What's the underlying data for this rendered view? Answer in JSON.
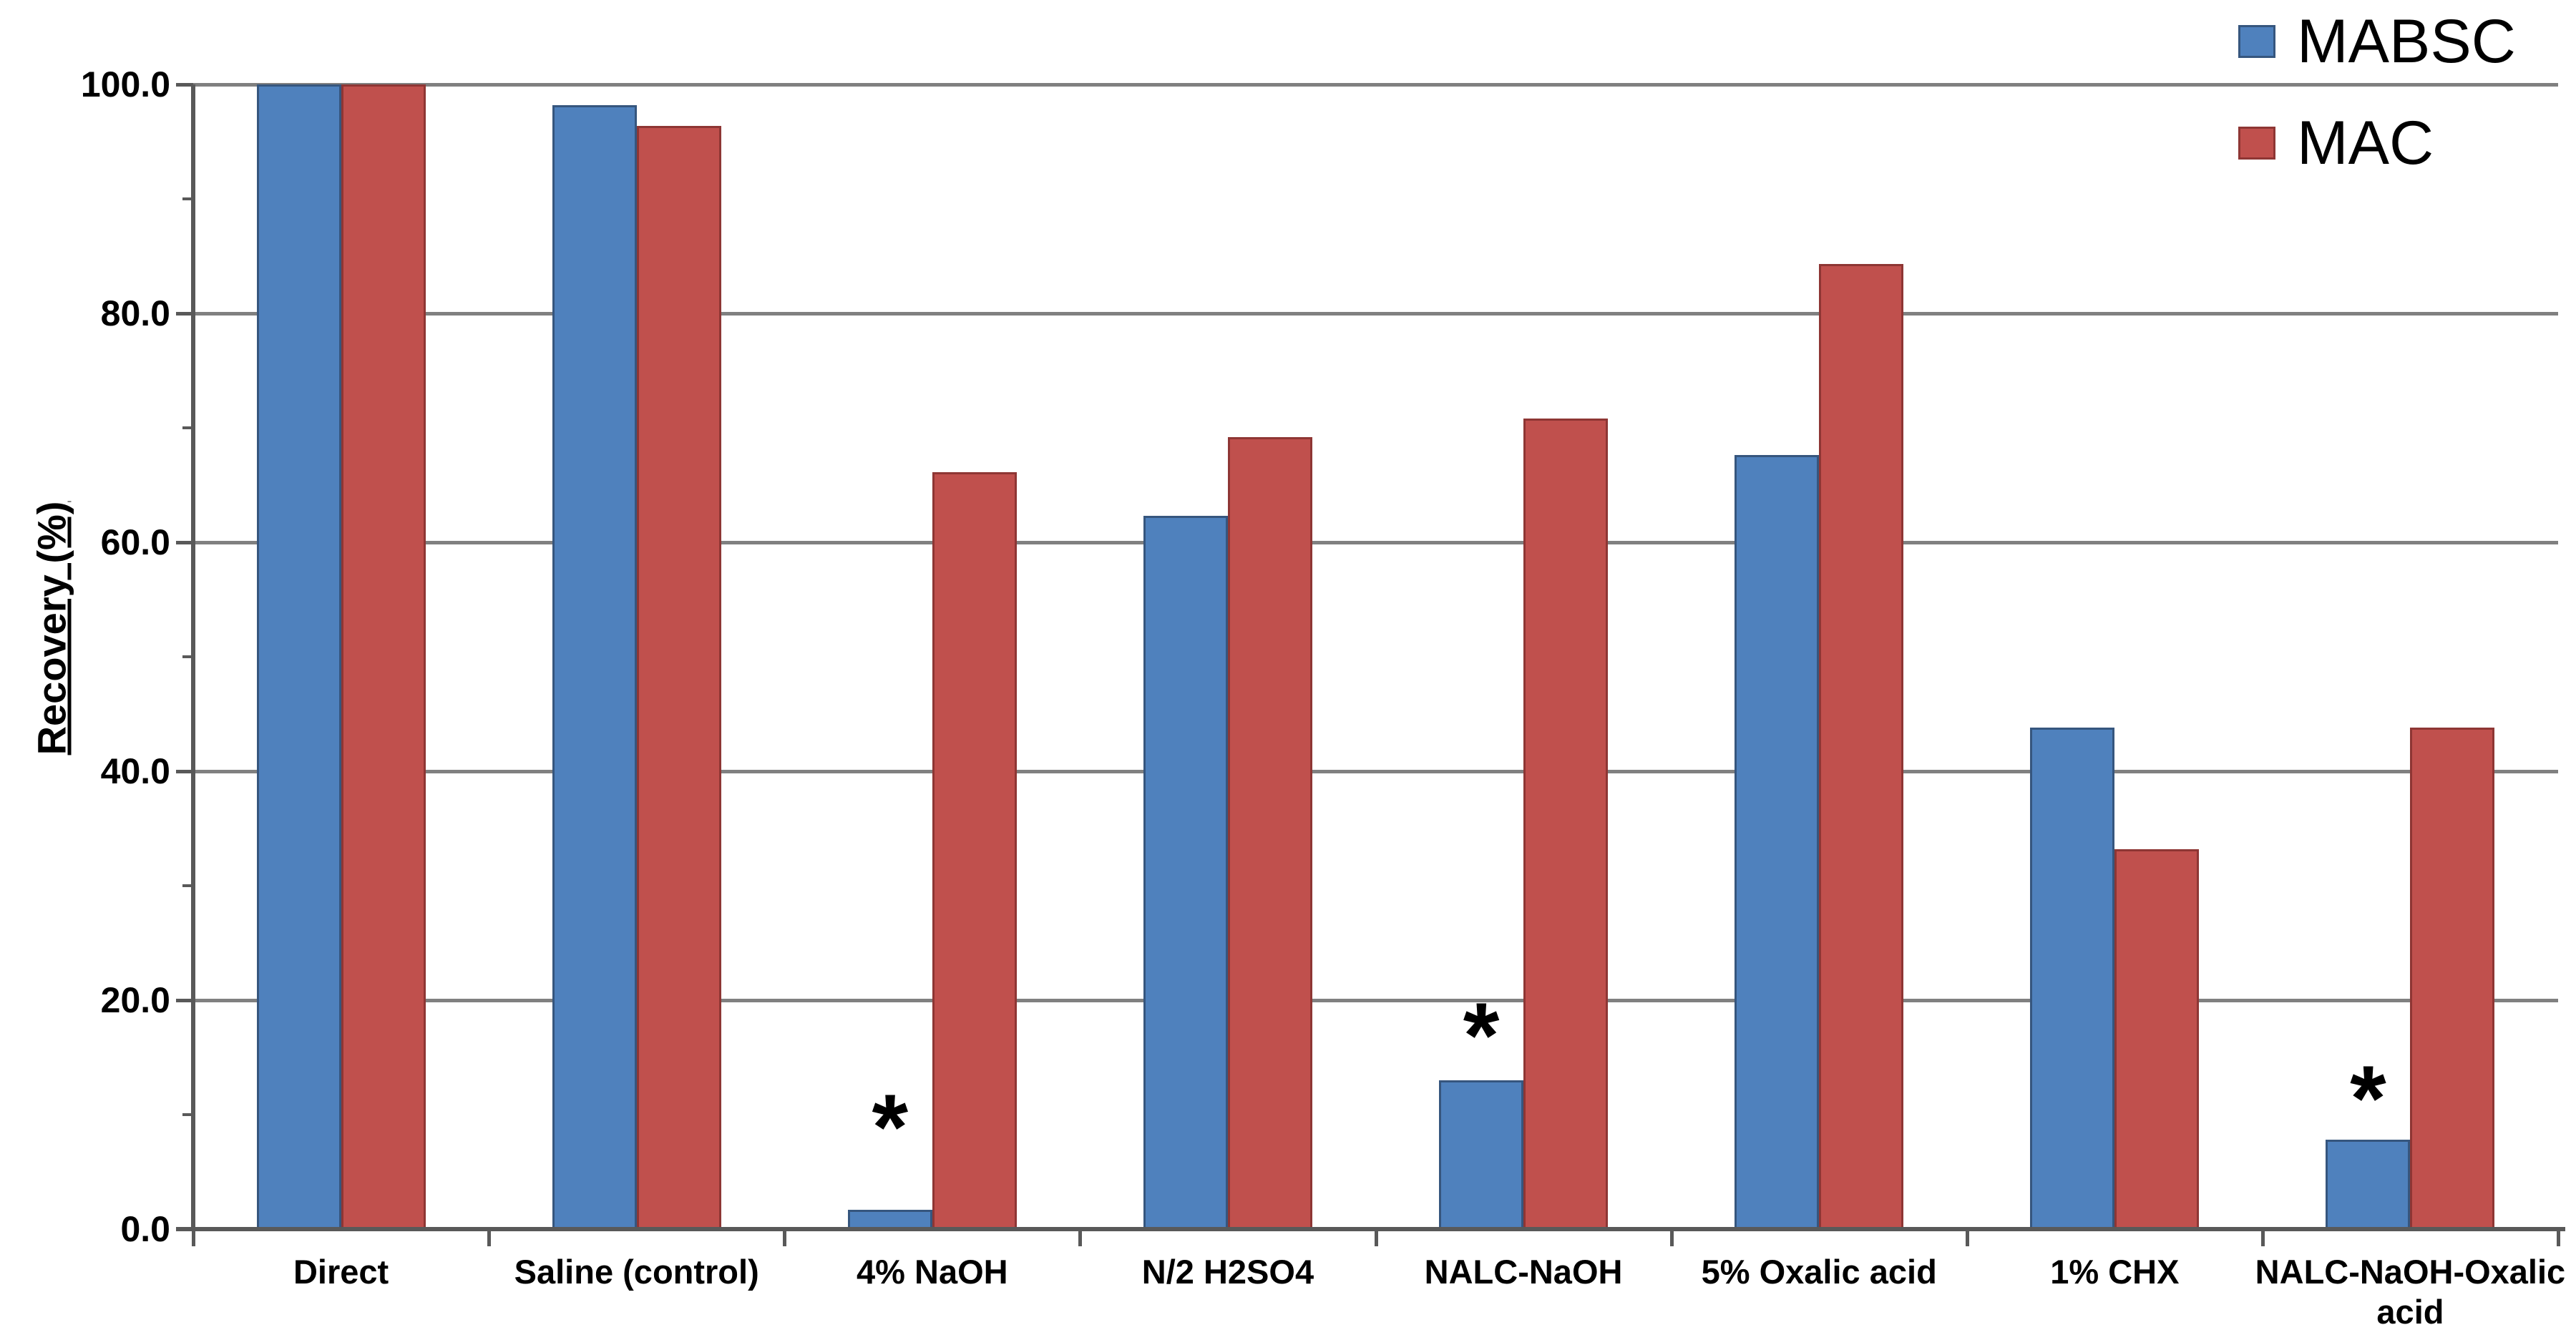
{
  "figure": {
    "background": "#ffffff",
    "axis_color": "#595959",
    "gridline_color": "#808080",
    "text_color": "#000000"
  },
  "chart_data": {
    "type": "bar",
    "title": "",
    "xlabel": "",
    "ylabel": "Recovery (%)",
    "ylim": [
      0,
      100
    ],
    "grid": true,
    "legend_position": "top-right",
    "yticks": [
      "0.0",
      "20.0",
      "40.0",
      "60.0",
      "80.0",
      "100.0"
    ],
    "ytick_values": [
      0,
      20,
      40,
      60,
      80,
      100
    ],
    "y_minor_tick_values": [
      10,
      30,
      50,
      70,
      90
    ],
    "categories": [
      "Direct",
      "Saline (control)",
      "4% NaOH",
      "N/2 H2SO4",
      "NALC-NaOH",
      "5% Oxalic acid",
      "1% CHX",
      "NALC-NaOH-Oxalic\nacid"
    ],
    "series": [
      {
        "name": "MABSC",
        "color": "#4F81BD",
        "border_color": "#36567E",
        "values": [
          100.0,
          98.2,
          1.7,
          62.3,
          13.0,
          67.6,
          43.8,
          7.8
        ]
      },
      {
        "name": "MAC",
        "color": "#C0504D",
        "border_color": "#8E3634",
        "values": [
          100.0,
          96.4,
          66.1,
          69.2,
          70.8,
          84.3,
          33.2,
          43.8
        ]
      }
    ],
    "annotations": [
      {
        "text": "*",
        "category_index": 2,
        "series": "MABSC",
        "y": 10.0
      },
      {
        "text": "*",
        "category_index": 4,
        "series": "MABSC",
        "y": 18.0
      },
      {
        "text": "*",
        "category_index": 7,
        "series": "MABSC",
        "y": 12.5
      }
    ]
  },
  "legend": {
    "entries": [
      {
        "label": "MABSC",
        "color": "#4F81BD",
        "border_color": "#36567E"
      },
      {
        "label": "MAC",
        "color": "#C0504D",
        "border_color": "#8E3634"
      }
    ]
  }
}
